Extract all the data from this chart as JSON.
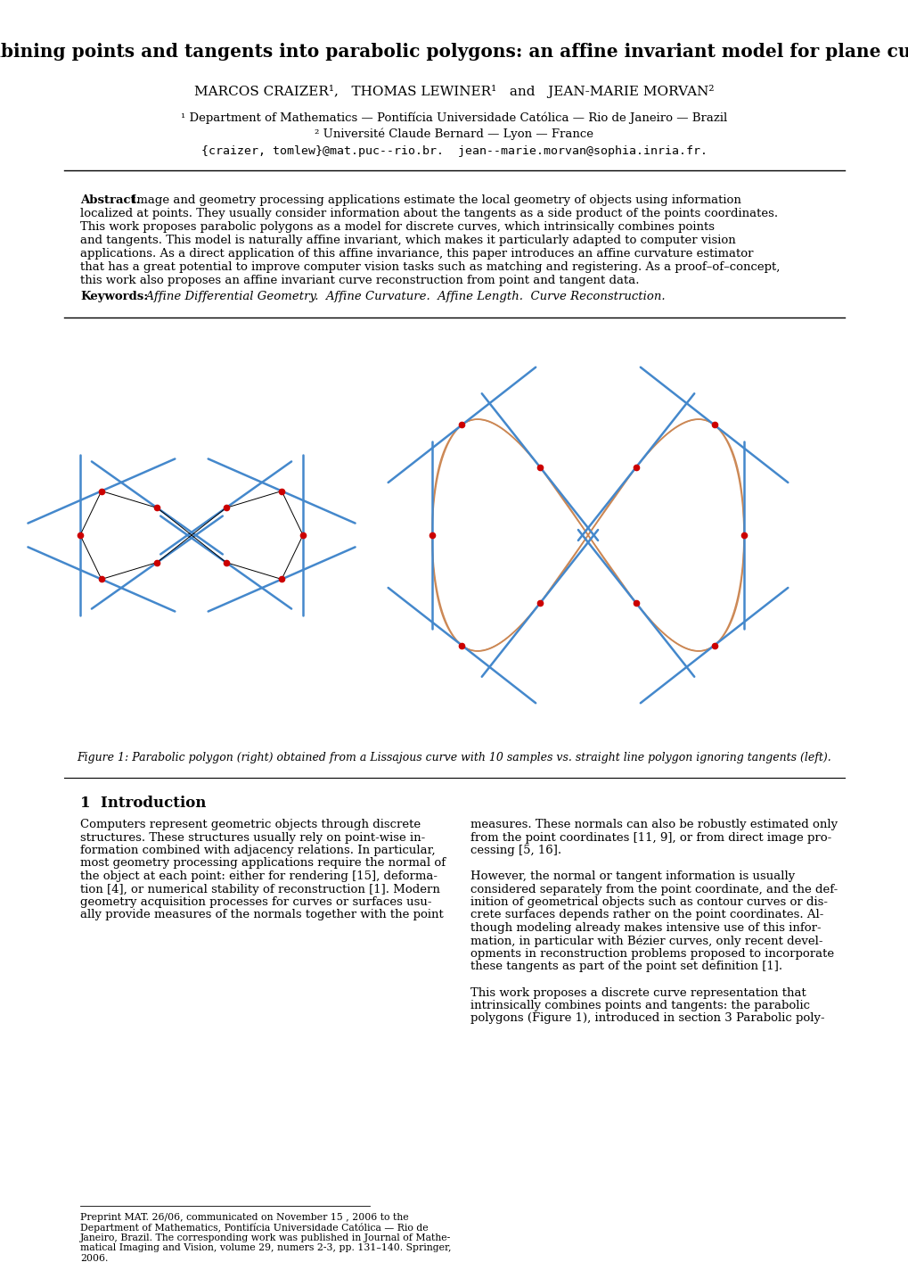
{
  "title": "Combining points and tangents into parabolic polygons: an affine invariant model for plane curves",
  "authors": "MARCOS CRAIZER¹,   THOMAS LEWINER¹   and   JEAN-MARIE MORVAN²",
  "affil1": "¹ Department of Mathematics — Pontifícia Universidade Católica — Rio de Janeiro — Brazil",
  "affil2": "² Université Claude Bernard — Lyon — France",
  "email": "{craizer, tomlew}@mat.puc--rio.br.  jean--marie.morvan@sophia.inria.fr.",
  "abstract_bold": "Abstract.",
  "keywords_bold": "Keywords:",
  "keywords_text": "  Affine Differential Geometry.  Affine Curvature.  Affine Length.  Curve Reconstruction.",
  "figure_caption": "Figure 1: Parabolic polygon (right) obtained from a Lissajous curve with 10 samples vs. straight line polygon ignoring tangents (left).",
  "section1_title": "1  Introduction",
  "footnote_lines": [
    "Preprint MAT. 26/06, communicated on November 15 , 2006 to the",
    "Department of Mathematics, Pontifícia Universidade Católica — Rio de",
    "Janeiro, Brazil. The corresponding work was published in Journal of Mathe-",
    "matical Imaging and Vision, volume 29, numers 2-3, pp. 131–140. Springer,",
    "2006."
  ],
  "abstract_lines": [
    "Image and geometry processing applications estimate the local geometry of objects using information",
    "localized at points. They usually consider information about the tangents as a side product of the points coordinates.",
    "This work proposes parabolic polygons as a model for discrete curves, which intrinsically combines points",
    "and tangents. This model is naturally affine invariant, which makes it particularly adapted to computer vision",
    "applications. As a direct application of this affine invariance, this paper introduces an affine curvature estimator",
    "that has a great potential to improve computer vision tasks such as matching and registering. As a proof–of–concept,",
    "this work also proposes an affine invariant curve reconstruction from point and tangent data."
  ],
  "col1_lines": [
    "Computers represent geometric objects through discrete",
    "structures. These structures usually rely on point-wise in-",
    "formation combined with adjacency relations. In particular,",
    "most geometry processing applications require the normal of",
    "the object at each point: either for rendering [15], deforma-",
    "tion [4], or numerical stability of reconstruction [1]. Modern",
    "geometry acquisition processes for curves or surfaces usu-",
    "ally provide measures of the normals together with the point"
  ],
  "col2_lines": [
    "measures. These normals can also be robustly estimated only",
    "from the point coordinates [11, 9], or from direct image pro-",
    "cessing [5, 16].",
    "",
    "However, the normal or tangent information is usually",
    "considered separately from the point coordinate, and the def-",
    "inition of geometrical objects such as contour curves or dis-",
    "crete surfaces depends rather on the point coordinates. Al-",
    "though modeling already makes intensive use of this infor-",
    "mation, in particular with Bézier curves, only recent devel-",
    "opments in reconstruction problems proposed to incorporate",
    "these tangents as part of the point set definition [1].",
    "",
    "This work proposes a discrete curve representation that",
    "intrinsically combines points and tangents: the parabolic",
    "polygons (Figure 1), introduced in section 3 Parabolic poly-"
  ],
  "background_color": "#ffffff",
  "fig_line_color_blue": "#4488cc",
  "fig_line_color_orange": "#cc8855",
  "fig_dot_color": "#cc0000"
}
